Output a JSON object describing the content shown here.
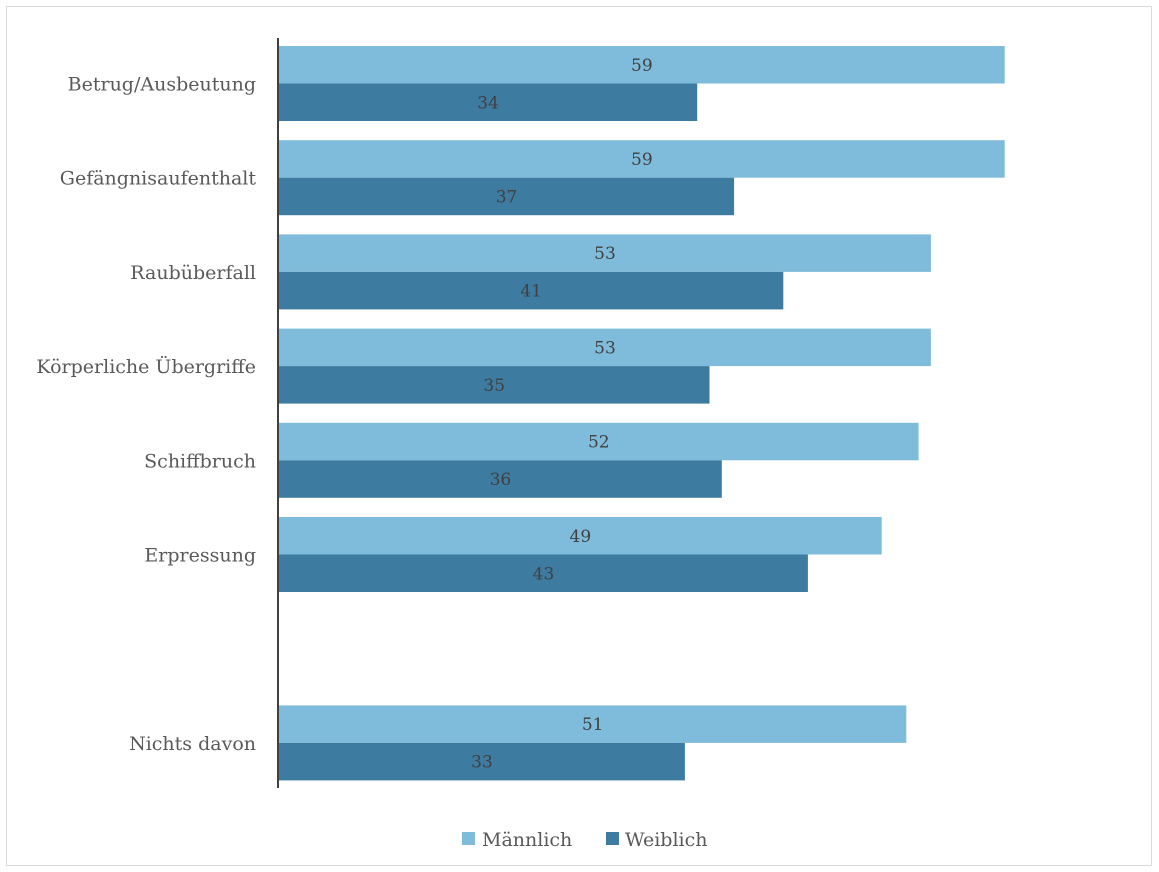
{
  "chart_data": {
    "type": "bar",
    "orientation": "horizontal",
    "categories": [
      "Betrug/Ausbeutung",
      "Gefängnisaufenthalt",
      "Raubüberfall",
      "Körperliche Übergriffe",
      "Schiffbruch",
      "Erpressung",
      "",
      "Nichts davon"
    ],
    "series": [
      {
        "name": "Männlich",
        "color": "#7fbcdb",
        "values": [
          59,
          59,
          53,
          53,
          52,
          49,
          null,
          51
        ],
        "labels": [
          "59",
          "59",
          "53",
          "53",
          "52",
          "49",
          "",
          "51"
        ]
      },
      {
        "name": "Weiblich",
        "color": "#3e7ba0",
        "values": [
          34,
          37,
          41,
          35,
          36,
          43,
          null,
          33
        ],
        "labels": [
          "34",
          "37",
          "41",
          "35",
          "36",
          "43",
          "",
          "33"
        ]
      }
    ],
    "xlim": [
      0,
      70
    ],
    "legend": "bottom",
    "grid": false
  }
}
